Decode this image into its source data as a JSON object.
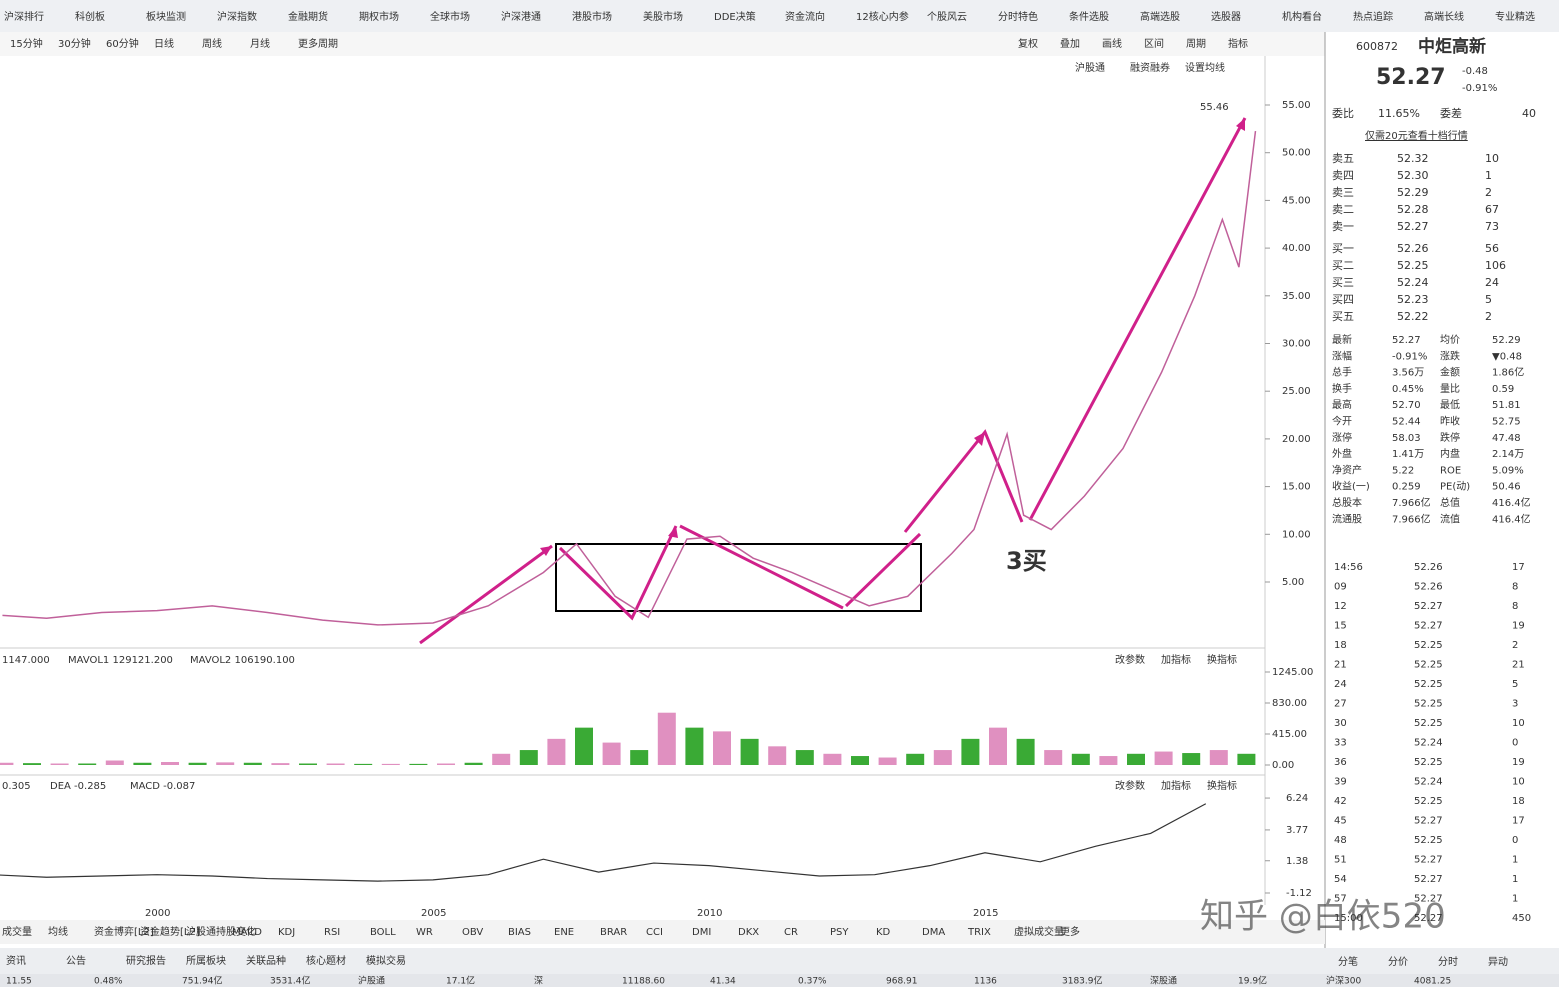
{
  "menu": [
    "沪深排行",
    "科创板",
    "板块监测",
    "沪深指数",
    "金融期货",
    "期权市场",
    "全球市场",
    "沪深港通",
    "港股市场",
    "美股市场",
    "DDE决策",
    "资金流向",
    "12核心内参",
    "个股风云",
    "分时特色",
    "条件选股",
    "高端选股",
    "选股器",
    "机构看台",
    "热点追踪",
    "高端长线",
    "专业精选"
  ],
  "periods": [
    "15分钟",
    "30分钟",
    "60分钟",
    "日线",
    "周线",
    "月线",
    "更多周期"
  ],
  "tools": [
    "复权",
    "叠加",
    "画线",
    "区间",
    "周期",
    "指标"
  ],
  "chart_tabs": [
    "沪股通",
    "融资融券",
    "设置均线"
  ],
  "stock": {
    "code": "600872",
    "name": "中炬高新",
    "price": "52.27",
    "change": "-0.48",
    "pct": "-0.91%"
  },
  "weibi": [
    "委比",
    "11.65%",
    "委差",
    "40"
  ],
  "promo": "仅需20元查看十档行情",
  "asks": [
    [
      "卖五",
      "52.32",
      "10"
    ],
    [
      "卖四",
      "52.30",
      "1"
    ],
    [
      "卖三",
      "52.29",
      "2"
    ],
    [
      "卖二",
      "52.28",
      "67"
    ],
    [
      "卖一",
      "52.27",
      "73"
    ]
  ],
  "bids": [
    [
      "买一",
      "52.26",
      "56"
    ],
    [
      "买二",
      "52.25",
      "106"
    ],
    [
      "买三",
      "52.24",
      "24"
    ],
    [
      "买四",
      "52.23",
      "5"
    ],
    [
      "买五",
      "52.22",
      "2"
    ]
  ],
  "stats": [
    [
      "最新",
      "52.27",
      "均价",
      "52.29"
    ],
    [
      "涨幅",
      "-0.91%",
      "涨跌",
      "▼0.48"
    ],
    [
      "总手",
      "3.56万",
      "金额",
      "1.86亿"
    ],
    [
      "换手",
      "0.45%",
      "量比",
      "0.59"
    ],
    [
      "最高",
      "52.70",
      "最低",
      "51.81"
    ],
    [
      "今开",
      "52.44",
      "昨收",
      "52.75"
    ],
    [
      "涨停",
      "58.03",
      "跌停",
      "47.48"
    ],
    [
      "外盘",
      "1.41万",
      "内盘",
      "2.14万"
    ],
    [
      "净资产",
      "5.22",
      "ROE",
      "5.09%"
    ],
    [
      "收益(一)",
      "0.259",
      "PE(动)",
      "50.46"
    ],
    [
      "总股本",
      "7.966亿",
      "总值",
      "416.4亿"
    ],
    [
      "流通股",
      "7.966亿",
      "流值",
      "416.4亿"
    ]
  ],
  "trades": [
    [
      "14:56",
      "52.26",
      "17"
    ],
    [
      "09",
      "52.26",
      "8"
    ],
    [
      "12",
      "52.27",
      "8"
    ],
    [
      "15",
      "52.27",
      "19"
    ],
    [
      "18",
      "52.25",
      "2"
    ],
    [
      "21",
      "52.25",
      "21"
    ],
    [
      "24",
      "52.25",
      "5"
    ],
    [
      "27",
      "52.25",
      "3"
    ],
    [
      "30",
      "52.25",
      "10"
    ],
    [
      "33",
      "52.24",
      "0"
    ],
    [
      "36",
      "52.25",
      "19"
    ],
    [
      "39",
      "52.24",
      "10"
    ],
    [
      "42",
      "52.25",
      "18"
    ],
    [
      "45",
      "52.27",
      "17"
    ],
    [
      "48",
      "52.25",
      "0"
    ],
    [
      "51",
      "52.27",
      "1"
    ],
    [
      "54",
      "52.27",
      "1"
    ],
    [
      "57",
      "52.27",
      "1"
    ],
    [
      "15:00",
      "52.27",
      "450"
    ]
  ],
  "price_chart": {
    "max_label": "55.46",
    "annotation": "3买",
    "yticks": [
      {
        "value": 55,
        "label": "55.00"
      },
      {
        "value": 50,
        "label": "50.00"
      },
      {
        "value": 45,
        "label": "45.00"
      },
      {
        "value": 40,
        "label": "40.00"
      },
      {
        "value": 35,
        "label": "35.00"
      },
      {
        "value": 30,
        "label": "30.00"
      },
      {
        "value": 25,
        "label": "25.00"
      },
      {
        "value": 20,
        "label": "20.00"
      },
      {
        "value": 15,
        "label": "15.00"
      },
      {
        "value": 10,
        "label": "10.00"
      },
      {
        "value": 5,
        "label": "5.00"
      }
    ],
    "x": [
      1997.2,
      1998,
      1999,
      2000,
      2001,
      2002,
      2003,
      2004,
      2005,
      2006,
      2007,
      2007.6,
      2008.3,
      2008.9,
      2009.6,
      2010.2,
      2010.8,
      2011.5,
      2012.3,
      2012.9,
      2013.6,
      2014.4,
      2014.8,
      2015.4,
      2015.7,
      2016.2,
      2016.8,
      2017.5,
      2018.2,
      2018.8,
      2019.3,
      2019.6,
      2019.9
    ],
    "closes": [
      1.5,
      1.2,
      1.8,
      2.0,
      2.5,
      1.8,
      1.0,
      0.5,
      0.7,
      2.5,
      6,
      9,
      3.5,
      1.3,
      9.5,
      9.8,
      7.5,
      6,
      4,
      2.5,
      3.5,
      8,
      10.5,
      20.5,
      12,
      10.5,
      14,
      19,
      27,
      35,
      43,
      38,
      52.27
    ]
  },
  "volume_chart": {
    "legend": [
      "1147.000",
      "MAVOL1 129121.200",
      "MAVOL2 106190.100"
    ],
    "yticks": [
      {
        "value": 1245,
        "label": "1245.00"
      },
      {
        "value": 830,
        "label": "830.00"
      },
      {
        "value": 415,
        "label": "415.00"
      },
      {
        "value": 0,
        "label": "0.00"
      }
    ],
    "x": [
      1997,
      1997.5,
      1998,
      1998.5,
      1999,
      1999.5,
      2000,
      2000.5,
      2001,
      2001.5,
      2002,
      2002.5,
      2003,
      2003.5,
      2004,
      2004.5,
      2005,
      2005.5,
      2006,
      2006.5,
      2007,
      2007.5,
      2008,
      2008.5,
      2009,
      2009.5,
      2010,
      2010.5,
      2011,
      2011.5,
      2012,
      2012.5,
      2013,
      2013.5,
      2014,
      2014.5,
      2015,
      2015.5,
      2016,
      2016.5,
      2017,
      2017.5,
      2018,
      2018.5,
      2019,
      2019.5
    ],
    "values": [
      30,
      25,
      20,
      20,
      60,
      30,
      40,
      30,
      35,
      30,
      25,
      20,
      20,
      15,
      15,
      15,
      20,
      30,
      150,
      200,
      350,
      500,
      300,
      200,
      700,
      500,
      450,
      350,
      250,
      200,
      150,
      120,
      100,
      150,
      200,
      350,
      500,
      350,
      200,
      150,
      120,
      150,
      180,
      160,
      200,
      150
    ]
  },
  "macd_chart": {
    "legend": [
      "0.305",
      "DEA -0.285",
      "MACD -0.087"
    ],
    "yticks": [
      {
        "value": 6.24,
        "label": "6.24"
      },
      {
        "value": 3.77,
        "label": "3.77"
      },
      {
        "value": 1.38,
        "label": "1.38"
      },
      {
        "value": -1.12,
        "label": "-1.12"
      }
    ],
    "x": [
      1997,
      1998,
      1999,
      2000,
      2001,
      2002,
      2003,
      2004,
      2005,
      2006,
      2007,
      2008,
      2009,
      2010,
      2011,
      2012,
      2013,
      2014,
      2015,
      2016,
      2017,
      2018,
      2019
    ],
    "dif": [
      0.3,
      0.1,
      0.2,
      0.3,
      0.2,
      0,
      -0.1,
      -0.2,
      -0.1,
      0.3,
      1.5,
      0.5,
      1.2,
      1.0,
      0.6,
      0.2,
      0.3,
      1.0,
      2.0,
      1.3,
      2.5,
      3.5,
      5.8
    ]
  },
  "panel_buttons": [
    "改参数",
    "加指标",
    "换指标"
  ],
  "years": [
    2000,
    2005,
    2010,
    2015
  ],
  "indicators": [
    "成交量",
    "均线",
    "资金博弈[L2]",
    "资金趋势[L2]",
    "沪股通持股变化",
    "MACD",
    "KDJ",
    "RSI",
    "BOLL",
    "WR",
    "OBV",
    "BIAS",
    "ENE",
    "BRAR",
    "CCI",
    "DMI",
    "DKX",
    "CR",
    "PSY",
    "KD",
    "DMA",
    "TRIX",
    "虚拟成交量",
    "更多"
  ],
  "bottom_tabs": [
    "资讯",
    "公告",
    "研究报告",
    "所属板块",
    "关联品种",
    "核心题材",
    "模拟交易"
  ],
  "side_tabs": [
    "分笔",
    "分价",
    "分时",
    "异动"
  ],
  "status": [
    "11.55",
    "0.48%",
    "751.94亿",
    "3531.4亿",
    "沪股通",
    "17.1亿",
    "深",
    "11188.60",
    "41.34",
    "0.37%",
    "968.91",
    "1136",
    "3183.9亿",
    "深股通",
    "19.9亿",
    "沪深300",
    "4081.25"
  ],
  "watermark": "知乎 @白依520"
}
